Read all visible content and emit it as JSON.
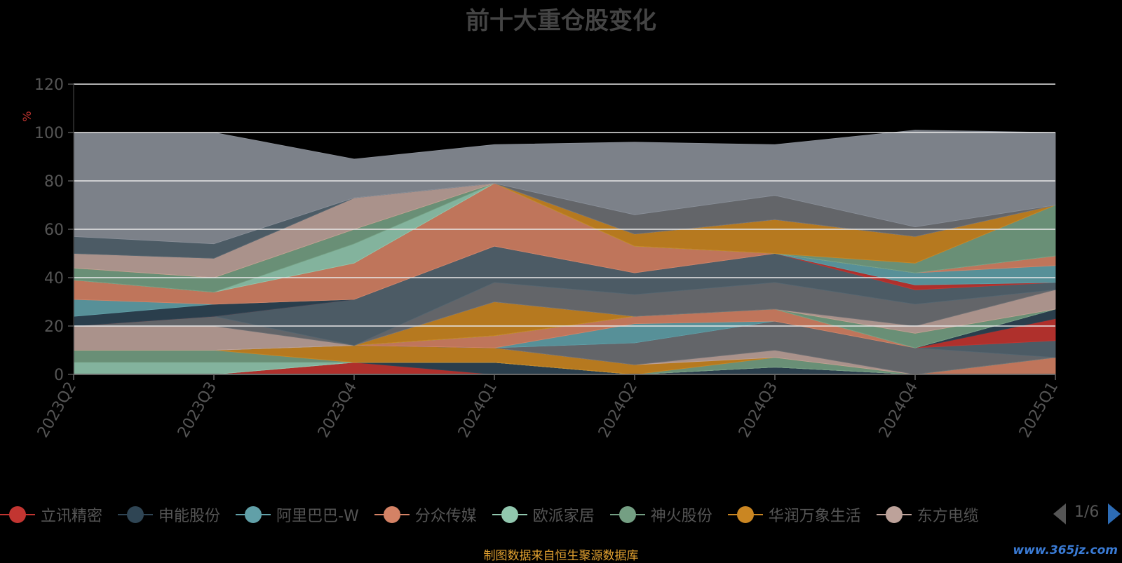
{
  "chart_data": {
    "type": "area",
    "title": "前十大重仓股变化",
    "ylabel": "%",
    "ylim": [
      0,
      120
    ],
    "yticks": [
      "0",
      "20",
      "40",
      "60",
      "80",
      "100",
      "120"
    ],
    "categories": [
      "2023Q2",
      "2023Q3",
      "2023Q4",
      "2024Q1",
      "2024Q2",
      "2024Q3",
      "2024Q4",
      "2025Q1"
    ],
    "stacked": true,
    "grid": true,
    "legend_position": "bottom",
    "series": [
      {
        "name": "立讯精密",
        "color": "#c23531",
        "values": [
          0,
          0,
          5,
          0,
          0,
          0,
          0,
          0
        ]
      },
      {
        "name": "申能股份",
        "color": "#2f4554",
        "values": [
          0,
          0,
          0,
          5,
          0,
          3,
          0,
          0
        ]
      },
      {
        "name": "阿里巴巴-W",
        "color": "#61a0a8",
        "values": [
          0,
          0,
          0,
          0,
          0,
          0,
          0,
          0
        ]
      },
      {
        "name": "分众传媒",
        "color": "#d48265",
        "values": [
          0,
          0,
          0,
          0,
          0,
          0,
          0,
          7
        ]
      },
      {
        "name": "欧派家居",
        "color": "#91c7ae",
        "values": [
          5,
          5,
          0,
          0,
          0,
          0,
          0,
          0
        ]
      },
      {
        "name": "神火股份",
        "color": "#749f83",
        "values": [
          5,
          5,
          0,
          0,
          0,
          4,
          0,
          0
        ]
      },
      {
        "name": "华润万象生活",
        "color": "#ca8622",
        "values": [
          0,
          0,
          7,
          6,
          4,
          0,
          0,
          0
        ]
      },
      {
        "name": "东方电缆",
        "color": "#bda29a",
        "values": [
          0,
          0,
          0,
          0,
          0,
          3,
          0,
          0
        ]
      },
      {
        "name": "",
        "color": "#6e7074",
        "values": [
          0,
          0,
          0,
          0,
          9,
          12,
          11,
          0
        ]
      },
      {
        "name": "",
        "color": "#546570",
        "values": [
          0,
          0,
          0,
          0,
          0,
          0,
          0,
          7
        ]
      },
      {
        "name": "",
        "color": "#c23531",
        "values": [
          0,
          0,
          0,
          0,
          0,
          0,
          0,
          9
        ]
      },
      {
        "name": "",
        "color": "#2f4554",
        "values": [
          0,
          0,
          0,
          0,
          0,
          0,
          0,
          4
        ]
      },
      {
        "name": "",
        "color": "#61a0a8",
        "values": [
          0,
          0,
          0,
          0,
          8,
          0,
          0,
          0
        ]
      },
      {
        "name": "",
        "color": "#d48265",
        "values": [
          0,
          0,
          0,
          5,
          3,
          5,
          0,
          0
        ]
      },
      {
        "name": "",
        "color": "#91c7ae",
        "values": [
          0,
          0,
          0,
          0,
          0,
          0,
          0,
          0
        ]
      },
      {
        "name": "",
        "color": "#749f83",
        "values": [
          0,
          0,
          0,
          0,
          0,
          0,
          6,
          0
        ]
      },
      {
        "name": "",
        "color": "#ca8622",
        "values": [
          0,
          0,
          0,
          14,
          0,
          0,
          0,
          0
        ]
      },
      {
        "name": "",
        "color": "#bda29a",
        "values": [
          10,
          10,
          0,
          0,
          0,
          0,
          3,
          8
        ]
      },
      {
        "name": "",
        "color": "#6e7074",
        "values": [
          0,
          4,
          0,
          8,
          9,
          11,
          9,
          0
        ]
      },
      {
        "name": "",
        "color": "#546570",
        "values": [
          0,
          0,
          19,
          15,
          9,
          12,
          6,
          3
        ]
      },
      {
        "name": "",
        "color": "#c23531",
        "values": [
          0,
          0,
          0,
          0,
          0,
          0,
          2,
          0
        ]
      },
      {
        "name": "",
        "color": "#2f4554",
        "values": [
          4,
          5,
          0,
          0,
          0,
          0,
          0,
          0
        ]
      },
      {
        "name": "",
        "color": "#61a0a8",
        "values": [
          7,
          0,
          0,
          0,
          0,
          0,
          5,
          7
        ]
      },
      {
        "name": "",
        "color": "#d48265",
        "values": [
          8,
          5,
          15,
          26,
          11,
          0,
          0,
          4
        ]
      },
      {
        "name": "",
        "color": "#91c7ae",
        "values": [
          0,
          0,
          8,
          0,
          0,
          0,
          0,
          0
        ]
      },
      {
        "name": "",
        "color": "#749f83",
        "values": [
          5,
          6,
          6,
          0,
          0,
          0,
          4,
          21
        ]
      },
      {
        "name": "",
        "color": "#ca8622",
        "values": [
          0,
          0,
          0,
          0,
          5,
          14,
          11,
          0
        ]
      },
      {
        "name": "",
        "color": "#bda29a",
        "values": [
          6,
          8,
          13,
          0,
          0,
          0,
          0,
          0
        ]
      },
      {
        "name": "",
        "color": "#6e7074",
        "values": [
          0,
          0,
          0,
          0,
          8,
          10,
          4,
          0
        ]
      },
      {
        "name": "",
        "color": "#546570",
        "values": [
          7,
          6,
          0,
          0,
          0,
          0,
          0,
          0
        ]
      },
      {
        "name": "",
        "color": "#8a8f98",
        "values": [
          43,
          46,
          16,
          16,
          30,
          21,
          40,
          30
        ]
      }
    ]
  },
  "legend": {
    "items": [
      {
        "label": "立讯精密",
        "color": "#c23531"
      },
      {
        "label": "申能股份",
        "color": "#2f4554"
      },
      {
        "label": "阿里巴巴-W",
        "color": "#61a0a8"
      },
      {
        "label": "分众传媒",
        "color": "#d48265"
      },
      {
        "label": "欧派家居",
        "color": "#91c7ae"
      },
      {
        "label": "神火股份",
        "color": "#749f83"
      },
      {
        "label": "华润万象生活",
        "color": "#ca8622"
      },
      {
        "label": "东方电缆",
        "color": "#bda29a"
      }
    ],
    "page_text": "1/6"
  },
  "source_note": "制图数据来自恒生聚源数据库",
  "watermark": "www.365jz.com"
}
